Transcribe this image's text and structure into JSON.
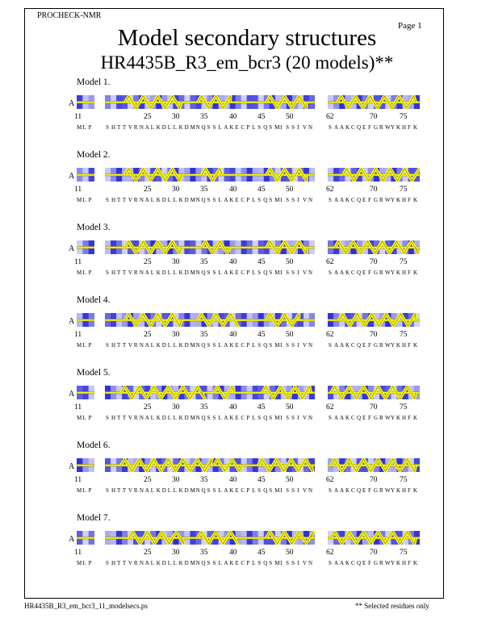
{
  "header": {
    "program": "PROCHECK-NMR",
    "page": "Page  1",
    "title": "Model secondary structures",
    "subtitle": "HR4435B_R3_em_bcr3 (20 models)**"
  },
  "footer": {
    "filename": "HR4435B_R3_em_bcr3_11_modelsecs.ps",
    "note": "** Selected residues only"
  },
  "chain_label": "A",
  "segments": {
    "seg1_start": "11",
    "seg1_seq": "MLP",
    "seg2_ticks": [
      "25",
      "30",
      "35",
      "40",
      "45",
      "50"
    ],
    "seg2_seq": "SHTTVRNALKDLLKDMNQSSLAKECPLSQSMISSIVN",
    "seg3_start": "62",
    "seg3_ticks": [
      "70",
      "75"
    ],
    "seg3_seq": "SAAKCQEFGRWYKHFK"
  },
  "models": [
    {
      "label": "Model  1."
    },
    {
      "label": "Model  2."
    },
    {
      "label": "Model  3."
    },
    {
      "label": "Model  4."
    },
    {
      "label": "Model  5."
    },
    {
      "label": "Model  6."
    },
    {
      "label": "Model  7."
    }
  ],
  "colors": {
    "helix_fill": "#f5f518",
    "helix_stroke": "#8a7a00",
    "shade_dark": "#1a1ad8",
    "shade_light": "#f2f2ff"
  }
}
